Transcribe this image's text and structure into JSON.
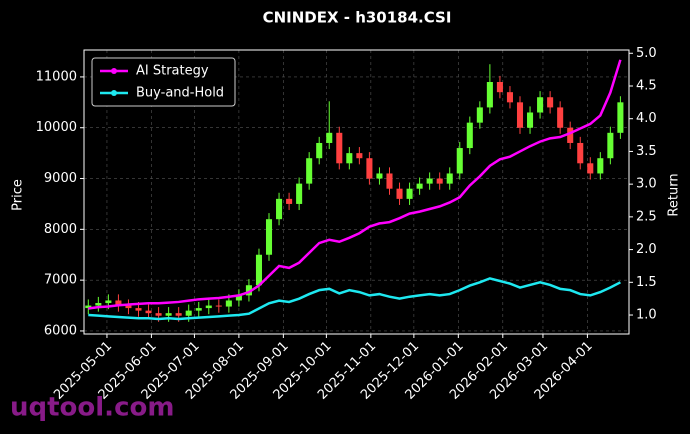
{
  "chart_data": {
    "type": "candlestick",
    "title": "CNINDEX - h30184.CSI",
    "ylabel": "Price",
    "y2label": "Return",
    "x": [
      "2025-04-18",
      "2025-04-25",
      "2025-05-02",
      "2025-05-09",
      "2025-05-16",
      "2025-05-23",
      "2025-05-30",
      "2025-06-06",
      "2025-06-13",
      "2025-06-20",
      "2025-06-27",
      "2025-07-04",
      "2025-07-11",
      "2025-07-18",
      "2025-07-25",
      "2025-08-01",
      "2025-08-08",
      "2025-08-15",
      "2025-08-22",
      "2025-08-29",
      "2025-09-05",
      "2025-09-12",
      "2025-09-19",
      "2025-09-26",
      "2025-10-03",
      "2025-10-10",
      "2025-10-17",
      "2025-10-24",
      "2025-10-31",
      "2025-11-07",
      "2025-11-14",
      "2025-11-21",
      "2025-11-28",
      "2025-12-05",
      "2025-12-12",
      "2025-12-19",
      "2025-12-26",
      "2026-01-02",
      "2026-01-09",
      "2026-01-16",
      "2026-01-23",
      "2026-01-30",
      "2026-02-06",
      "2026-02-13",
      "2026-02-20",
      "2026-02-27",
      "2026-03-06",
      "2026-03-13",
      "2026-03-20",
      "2026-03-27",
      "2026-04-03",
      "2026-04-10",
      "2026-04-17",
      "2026-04-24"
    ],
    "open": [
      6450,
      6500,
      6550,
      6600,
      6500,
      6450,
      6400,
      6350,
      6300,
      6350,
      6300,
      6400,
      6450,
      6500,
      6480,
      6600,
      6700,
      6900,
      7500,
      8200,
      8600,
      8500,
      8900,
      9400,
      9700,
      9900,
      9300,
      9500,
      9400,
      9000,
      9100,
      8800,
      8600,
      8800,
      8900,
      9000,
      8900,
      9100,
      9600,
      10100,
      10400,
      10900,
      10700,
      10500,
      10000,
      10300,
      10600,
      10400,
      10000,
      9700,
      9300,
      9100,
      9400,
      9900
    ],
    "high": [
      6620,
      6670,
      6720,
      6720,
      6620,
      6570,
      6520,
      6470,
      6470,
      6470,
      6520,
      6570,
      6620,
      6620,
      6720,
      6820,
      7020,
      7620,
      8320,
      8720,
      8720,
      9020,
      9520,
      9820,
      10520,
      10020,
      9620,
      9620,
      9520,
      9220,
      9220,
      8920,
      8920,
      9020,
      9120,
      9120,
      9220,
      9720,
      10220,
      10520,
      11250,
      11020,
      10820,
      10620,
      10420,
      10720,
      10720,
      10520,
      10120,
      9820,
      9420,
      9520,
      10020,
      10620
    ],
    "low": [
      6330,
      6380,
      6430,
      6380,
      6330,
      6280,
      6230,
      6180,
      6180,
      6180,
      6180,
      6280,
      6330,
      6360,
      6360,
      6480,
      6580,
      6780,
      7380,
      8080,
      8380,
      8380,
      8780,
      9280,
      9580,
      9180,
      9180,
      9280,
      8880,
      8880,
      8680,
      8480,
      8480,
      8680,
      8780,
      8780,
      8780,
      8980,
      9480,
      9980,
      10280,
      10580,
      10380,
      9880,
      9880,
      10180,
      10280,
      9880,
      9580,
      9180,
      8980,
      8980,
      9280,
      9780
    ],
    "close": [
      6500,
      6550,
      6600,
      6500,
      6450,
      6400,
      6350,
      6300,
      6350,
      6300,
      6400,
      6450,
      6500,
      6480,
      6600,
      6700,
      6900,
      7500,
      8200,
      8600,
      8500,
      8900,
      9400,
      9700,
      9900,
      9300,
      9500,
      9400,
      9000,
      9100,
      8800,
      8600,
      8800,
      8900,
      9000,
      8900,
      9100,
      9600,
      10100,
      10400,
      10900,
      10700,
      10500,
      10000,
      10300,
      10600,
      10400,
      10000,
      9700,
      9300,
      9100,
      9400,
      9900,
      10500
    ],
    "up_color": "#66ff33",
    "down_color": "#ff4040",
    "series": [
      {
        "name": "AI Strategy",
        "color": "#ff00ff",
        "axis": "y2",
        "values": [
          1.1,
          1.12,
          1.13,
          1.15,
          1.16,
          1.17,
          1.18,
          1.18,
          1.19,
          1.2,
          1.22,
          1.24,
          1.25,
          1.26,
          1.28,
          1.3,
          1.35,
          1.45,
          1.6,
          1.75,
          1.72,
          1.8,
          1.95,
          2.1,
          2.15,
          2.12,
          2.18,
          2.25,
          2.35,
          2.4,
          2.42,
          2.48,
          2.55,
          2.58,
          2.62,
          2.66,
          2.72,
          2.8,
          2.98,
          3.12,
          3.28,
          3.38,
          3.42,
          3.5,
          3.58,
          3.65,
          3.7,
          3.72,
          3.78,
          3.85,
          3.92,
          4.05,
          4.4,
          4.9
        ]
      },
      {
        "name": "Buy-and-Hold",
        "color": "#1ee8f0",
        "axis": "y2",
        "values": [
          1.0,
          0.99,
          0.98,
          0.97,
          0.96,
          0.95,
          0.95,
          0.94,
          0.95,
          0.94,
          0.95,
          0.96,
          0.97,
          0.98,
          0.99,
          1.0,
          1.02,
          1.1,
          1.18,
          1.22,
          1.2,
          1.25,
          1.32,
          1.38,
          1.4,
          1.33,
          1.38,
          1.35,
          1.3,
          1.32,
          1.28,
          1.25,
          1.28,
          1.3,
          1.32,
          1.3,
          1.32,
          1.38,
          1.45,
          1.5,
          1.56,
          1.52,
          1.48,
          1.42,
          1.46,
          1.5,
          1.46,
          1.4,
          1.38,
          1.32,
          1.3,
          1.35,
          1.42,
          1.5
        ]
      }
    ],
    "xlim": [
      "2025-04-15",
      "2026-04-30"
    ],
    "xticks": [
      "2025-05-01",
      "2025-06-01",
      "2025-07-01",
      "2025-08-01",
      "2025-09-01",
      "2025-10-01",
      "2025-11-01",
      "2025-12-01",
      "2026-01-01",
      "2026-02-01",
      "2026-03-01",
      "2026-04-01"
    ],
    "ylim": [
      5940,
      11530
    ],
    "yticks": [
      6000,
      7000,
      8000,
      9000,
      10000,
      11000
    ],
    "y2lim": [
      0.71,
      5.05
    ],
    "y2ticks": [
      {
        "value": 1,
        "label": "1.0"
      },
      1.5,
      {
        "value": 2,
        "label": "2.0"
      },
      2.5,
      {
        "value": 3,
        "label": "3.0"
      },
      3.5,
      {
        "value": 4,
        "label": "4.0"
      },
      4.5,
      {
        "value": 5,
        "label": "5.0"
      }
    ],
    "grid": true,
    "legend": "upper left"
  },
  "watermark": "uqtool.com"
}
